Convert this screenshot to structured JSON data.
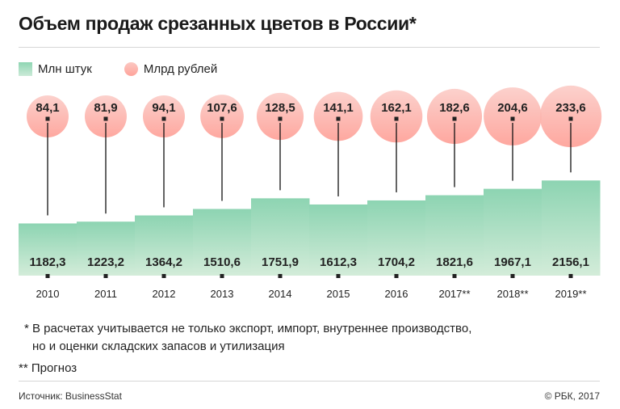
{
  "header": {
    "title": "Объем продаж срезанных цветов в России*"
  },
  "legend": [
    {
      "label": "Млн штук",
      "color": "#8fd5b3",
      "shape": "square"
    },
    {
      "label": "Млрд рублей",
      "color": "#fea39a",
      "shape": "circle"
    }
  ],
  "notes": {
    "note1_line1": "* В расчетах учитывается не только экспорт, импорт, внутреннее производство,",
    "note1_line2": "но и оценки складских запасов и утилизация",
    "note2": "** Прогноз"
  },
  "footer": {
    "source": "Источник: BusinessStat",
    "copyright": "© РБК, 2017"
  },
  "colors": {
    "bar_top": "#8dd4b2",
    "bar_bottom": "#d3ecd9",
    "circle_top": "#fbcdc8",
    "circle_bottom": "#fea097",
    "text": "#222222",
    "marker": "#222222"
  },
  "chart_data": {
    "type": "bar",
    "title": "Объем продаж срезанных цветов в России*",
    "categories": [
      "2010",
      "2011",
      "2012",
      "2013",
      "2014",
      "2015",
      "2016",
      "2017**",
      "2018**",
      "2019**"
    ],
    "series": [
      {
        "name": "Млн штук",
        "kind": "bar",
        "values": [
          1182.3,
          1223.2,
          1364.2,
          1510.6,
          1751.9,
          1612.3,
          1704.2,
          1821.6,
          1967.1,
          2156.1
        ],
        "labels": [
          "1182,3",
          "1223,2",
          "1364,2",
          "1510,6",
          "1751,9",
          "1612,3",
          "1704,2",
          "1821,6",
          "1967,1",
          "2156,1"
        ]
      },
      {
        "name": "Млрд рублей",
        "kind": "bubble",
        "values": [
          84.1,
          81.9,
          94.1,
          107.6,
          128.5,
          141.1,
          162.1,
          182.6,
          204.6,
          233.6
        ],
        "labels": [
          "84,1",
          "81,9",
          "94,1",
          "107,6",
          "128,5",
          "141,1",
          "162,1",
          "182,6",
          "204,6",
          "233,6"
        ]
      }
    ],
    "xlabel": "",
    "ylabel": "",
    "grid": false,
    "legend_position": "top-left"
  }
}
